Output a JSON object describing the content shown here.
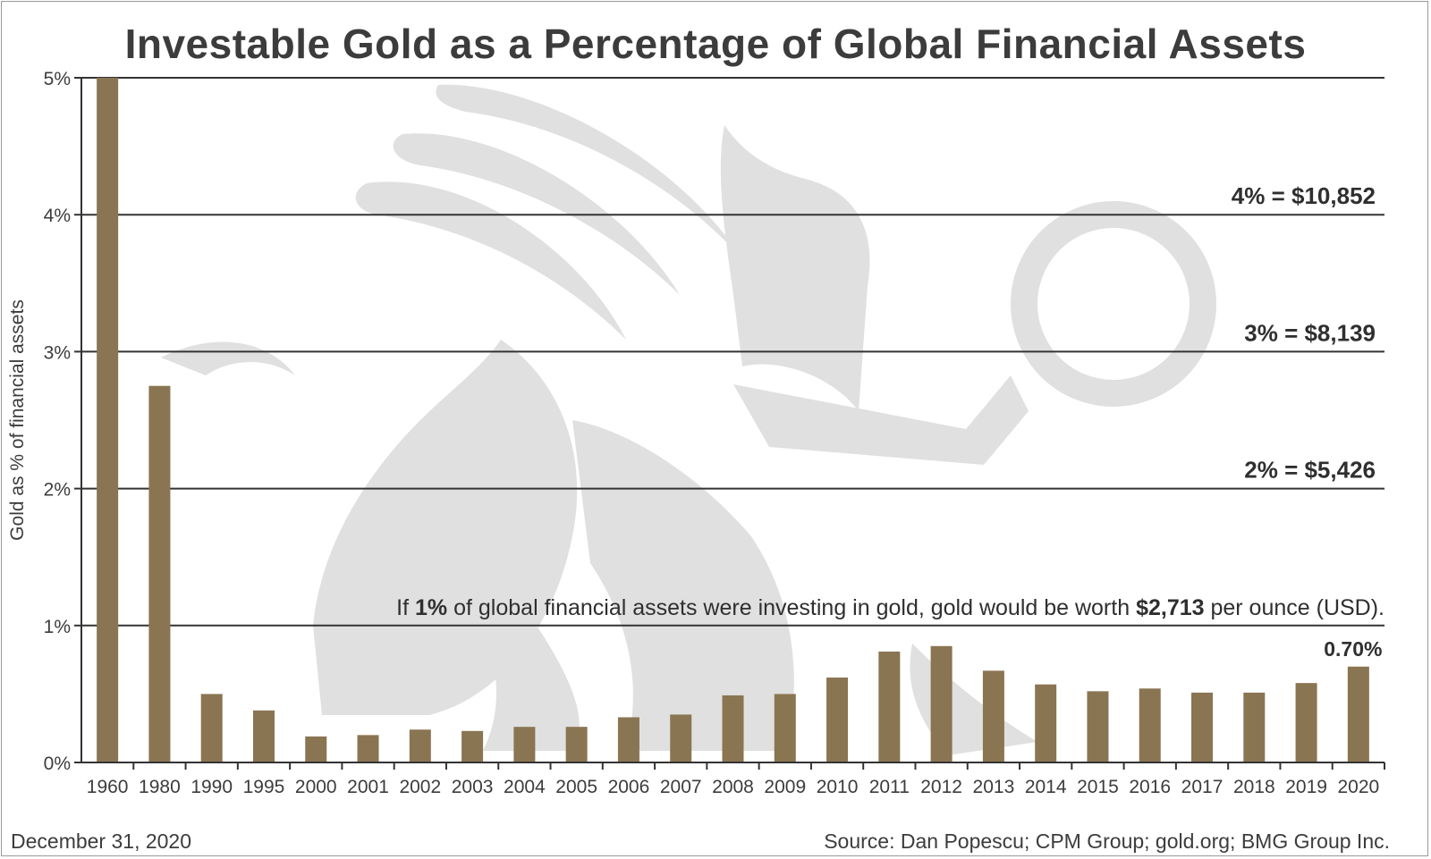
{
  "chart_data": {
    "type": "bar",
    "title": "Investable Gold as a Percentage of Global Financial Assets",
    "ylabel": "Gold as % of financial assets",
    "xlabel": "",
    "ylim": [
      0,
      5
    ],
    "yticks": [
      "0%",
      "1%",
      "2%",
      "3%",
      "4%",
      "5%"
    ],
    "grid": true,
    "categories": [
      "1960",
      "1980",
      "1990",
      "1995",
      "2000",
      "2001",
      "2002",
      "2003",
      "2004",
      "2005",
      "2006",
      "2007",
      "2008",
      "2009",
      "2010",
      "2011",
      "2012",
      "2013",
      "2014",
      "2015",
      "2016",
      "2017",
      "2018",
      "2019",
      "2020"
    ],
    "values": [
      5.0,
      2.75,
      0.5,
      0.38,
      0.19,
      0.2,
      0.24,
      0.23,
      0.26,
      0.26,
      0.33,
      0.35,
      0.49,
      0.5,
      0.62,
      0.81,
      0.85,
      0.67,
      0.57,
      0.52,
      0.54,
      0.51,
      0.51,
      0.58,
      0.7
    ],
    "bar_color": "#8a7552",
    "data_labels": [
      {
        "category": "2020",
        "text": "0.70%"
      }
    ],
    "reference_labels": [
      {
        "value": 4,
        "text": "4% = $10,852"
      },
      {
        "value": 3,
        "text": "3% = $8,139"
      },
      {
        "value": 2,
        "text": "2% = $5,426"
      }
    ],
    "note": {
      "value": 1,
      "parts": [
        {
          "text": "If ",
          "bold": false
        },
        {
          "text": "1%",
          "bold": true
        },
        {
          "text": " of global financial assets were investing in gold, gold would be worth ",
          "bold": false
        },
        {
          "text": "$2,713",
          "bold": true
        },
        {
          "text": " per ounce (USD).",
          "bold": false
        }
      ]
    }
  },
  "footer": {
    "date": "December 31, 2020",
    "source": "Source: Dan Popescu; CPM Group; gold.org; BMG Group Inc."
  },
  "colors": {
    "text": "#3c3c3c",
    "grid": "#333333",
    "watermark": "#e0e0e0"
  }
}
